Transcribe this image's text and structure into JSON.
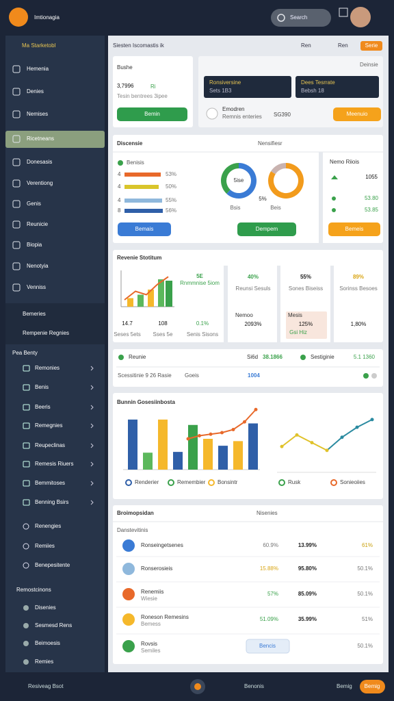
{
  "header": {
    "brand": "Imtionagia",
    "search": "Search"
  },
  "sidebar": {
    "title": "Ma Starketobl",
    "items": [
      "Hemenia",
      "Denies",
      "Nemises",
      "Ricetneans",
      "Donesasis",
      "Verentiong",
      "Genis",
      "Reunicie",
      "Biopia",
      "Nenotyia",
      "Venniss"
    ],
    "group": [
      "Bemeries",
      "Rempenie Regnies"
    ],
    "section": "Pea Benty",
    "sub_items": [
      "Remonies",
      "Benis",
      "Beeris",
      "Remegnies",
      "Reupeclinas",
      "Remesis Riuers",
      "Bemmitoses",
      "Benning Bsirs"
    ],
    "more": [
      "Renengies",
      "Remiies",
      "Benepesitente"
    ],
    "section2": "Remostcinons",
    "items2": [
      "Disenies",
      "Sesmesd Rens",
      "Beimoesis",
      "Remies"
    ]
  },
  "footer": {
    "label": "Resiveag Bsot",
    "tab": "Benonis",
    "user": "Bemig",
    "button": "Bemig"
  },
  "toolbar": {
    "title": "Siesten Iscomastis ik",
    "links": [
      "Ren",
      "Ren"
    ],
    "tag": "Serie"
  },
  "summary": {
    "title": "Bushe",
    "value": "3,7996",
    "delta": "Ri",
    "note": "Tesin bentrees 3ipee",
    "button": "Bemin"
  },
  "status": {
    "label": "Deinsie",
    "cards": [
      {
        "title": "Ronsiversine",
        "sub": "Sets 1B3"
      },
      {
        "title": "Dees Tesrrate",
        "sub": "Bebsh 18"
      }
    ],
    "item": {
      "title": "Emodren",
      "sub": "Remnis enteries"
    },
    "amount": "SG390",
    "button": "Meenuio"
  },
  "distribution": {
    "title": "Discensie",
    "control": "Nensifiesr",
    "legend": "Benisis",
    "bars": [
      {
        "label": "4",
        "value": 53,
        "text": "53%",
        "color": "#e8692a"
      },
      {
        "label": "4",
        "value": 50,
        "text": "50%",
        "color": "#d9c52b"
      },
      {
        "label": "4",
        "value": 55,
        "text": "55%",
        "color": "#8fb8dc"
      },
      {
        "label": "8",
        "value": 56,
        "text": "56%",
        "color": "#2f5fa8"
      }
    ],
    "donuts": [
      {
        "center": "5ise",
        "under": "Bsis",
        "segments": [
          62,
          38
        ],
        "colors": [
          "#3a7bd5",
          "#3aa14b"
        ]
      },
      {
        "center": "5%",
        "under": "Beis",
        "segments": [
          84,
          16
        ],
        "colors": [
          "#f29b1c",
          "#c9b3b0"
        ]
      }
    ],
    "buttons": [
      "Bemais",
      "Dempem"
    ],
    "side": {
      "title": "Nemo Riiois",
      "value": "1055",
      "rows": [
        "53.80",
        "53.85"
      ],
      "button": "Bemeis"
    }
  },
  "revenue": {
    "title": "Revenie Stotitum",
    "mini": [
      10,
      14,
      20,
      32
    ],
    "mini_line": [
      8,
      18,
      14,
      26,
      35
    ],
    "head": {
      "value": "5E",
      "sub": "Rnmmnise 5iom"
    },
    "stats": [
      {
        "value": "14.7",
        "sub": "Seses 5ets"
      },
      {
        "value": "108",
        "sub": "Sses 5e"
      },
      {
        "value": "0.1%",
        "sub": "Senis Sisons"
      }
    ],
    "cards": [
      {
        "value": "40%",
        "sub": "Reunsi Sesuls",
        "head": "Nemoo",
        "big": "2093%"
      },
      {
        "value": "55%",
        "sub": "Sones Biseiss",
        "head": "Mesis",
        "big": "125%",
        "note": "Gsi Hiz"
      },
      {
        "value": "89%",
        "sub": "Sorinss Besoes",
        "big": "1,80%"
      }
    ]
  },
  "reunie": {
    "title": "Reunie",
    "a": "Si6d",
    "b": "38.1866",
    "c": "Sestiginie",
    "d": "5.1 1360",
    "row": [
      "Scessitinie 9 26 Rasie",
      "Goeis",
      "1004"
    ]
  },
  "chart": {
    "title": "Bunnin Gosesiinbosta",
    "ylim": [
      0,
      80
    ],
    "bars": [
      65,
      22,
      65,
      23,
      58,
      40,
      31,
      37,
      60
    ],
    "colors": [
      "#2f5fa8",
      "#5cb85c",
      "#f5b82b",
      "#2f5fa8",
      "#3aa14b",
      "#f5b82b",
      "#2f5fa8",
      "#f5b82b",
      "#2f5fa8"
    ],
    "line": [
      40,
      44,
      46,
      48,
      52,
      62,
      78
    ],
    "line_color": "#e8692a",
    "line2": [
      30,
      45,
      35,
      25,
      42,
      55,
      65
    ],
    "line2_colors": [
      "#e0c22a",
      "#2a8aa0"
    ],
    "legend": [
      {
        "name": "Renderier",
        "color": "#2f5fa8"
      },
      {
        "name": "Remembier",
        "color": "#3aa14b"
      },
      {
        "name": "Bonsintr",
        "color": "#f5b82b"
      },
      {
        "name": "Rusk",
        "color": "#3aa14b"
      },
      {
        "name": "Sonieoiies",
        "color": "#e8692a"
      }
    ]
  },
  "table": {
    "title": "Broimopsidan",
    "control": "Nisenies",
    "subtitle": "Danstevitinis",
    "rows": [
      {
        "name": "Ronseingetsenes",
        "sub": "",
        "cells": [
          "60.9%",
          "13.99%",
          "61%"
        ],
        "colors": [
          "#777",
          "#222",
          "#c9a10f"
        ]
      },
      {
        "name": "Ronserosieis",
        "sub": "",
        "cells": [
          "15.88%",
          "95.80%",
          "50.1%"
        ],
        "colors": [
          "#d9a514",
          "#222",
          "#777"
        ]
      },
      {
        "name": "Renemiis",
        "sub": "Wiesie",
        "cells": [
          "57%",
          "85.09%",
          "50.1%"
        ],
        "colors": [
          "#3aa14b",
          "#222",
          "#777"
        ]
      },
      {
        "name": "Roneson Remesins",
        "sub": "Bemess",
        "cells": [
          "51.09%",
          "35.99%",
          "51%"
        ],
        "colors": [
          "#3aa14b",
          "#222",
          "#777"
        ]
      },
      {
        "name": "Rovsis",
        "sub": "Semiles",
        "badge": "Bencis",
        "cells": [
          "50.1%"
        ],
        "colors": [
          "#777"
        ]
      }
    ]
  }
}
